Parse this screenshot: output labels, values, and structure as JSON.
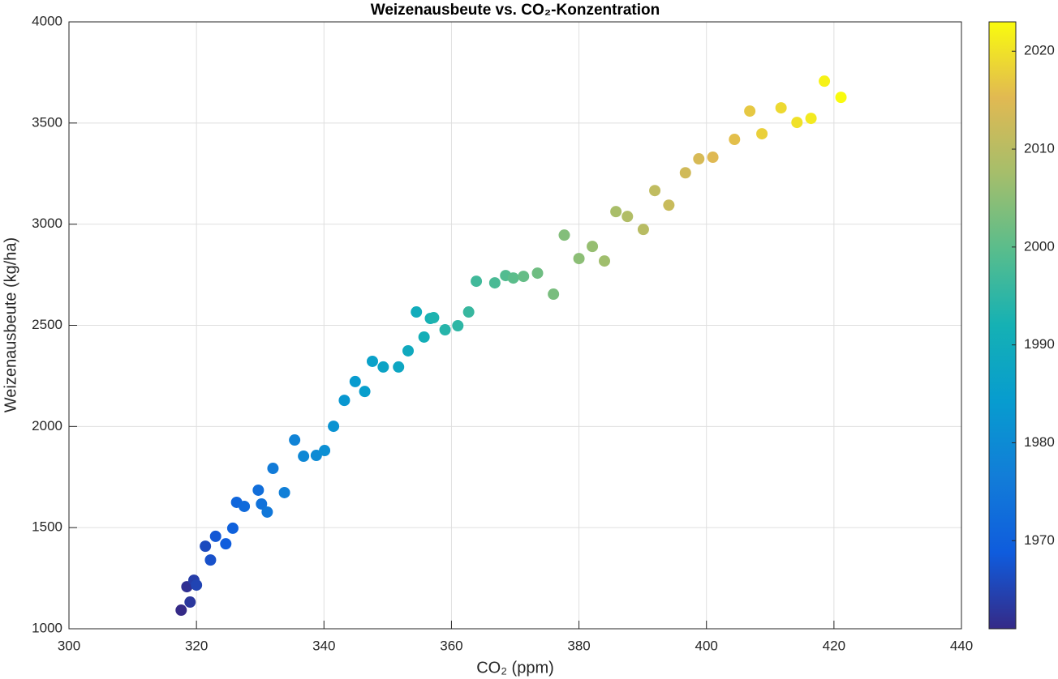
{
  "chart_data": {
    "type": "scatter",
    "title": "Weizenausbeute vs. CO₂-Konzentration",
    "x_label": "CO₂ (ppm)",
    "y_label": "Weizenausbeute (kg/ha)",
    "x": [
      317.6,
      318.5,
      319.0,
      319.6,
      320.0,
      321.4,
      322.2,
      323.0,
      324.6,
      325.7,
      326.3,
      327.5,
      329.7,
      330.2,
      331.1,
      332.0,
      333.8,
      335.4,
      336.8,
      338.8,
      340.1,
      341.5,
      343.2,
      344.9,
      346.4,
      347.6,
      349.3,
      351.7,
      353.2,
      354.5,
      355.7,
      356.7,
      357.2,
      359.0,
      361.0,
      362.7,
      363.9,
      366.8,
      368.5,
      369.7,
      371.3,
      373.5,
      376.0,
      377.7,
      380.0,
      382.1,
      384.0,
      385.8,
      387.6,
      390.1,
      391.9,
      394.1,
      396.7,
      398.8,
      401.0,
      404.4,
      406.8,
      408.7,
      411.7,
      414.2,
      416.4,
      418.5,
      421.1
    ],
    "values": [
      1092,
      1208,
      1132,
      1240,
      1216,
      1408,
      1340,
      1457,
      1420,
      1497,
      1625,
      1605,
      1685,
      1617,
      1577,
      1793,
      1673,
      1933,
      1853,
      1857,
      1881,
      2001,
      2129,
      2222,
      2173,
      2322,
      2294,
      2294,
      2374,
      2566,
      2442,
      2534,
      2538,
      2478,
      2498,
      2566,
      2718,
      2710,
      2746,
      2734,
      2742,
      2758,
      2654,
      2946,
      2830,
      2890,
      2818,
      3062,
      3038,
      2974,
      3166,
      3094,
      3254,
      3323,
      3331,
      3419,
      3559,
      3447,
      3575,
      3503,
      3523,
      3707,
      3627
    ],
    "c": [
      1961,
      1962,
      1963,
      1964,
      1965,
      1966,
      1967,
      1968,
      1969,
      1970,
      1971,
      1972,
      1973,
      1974,
      1975,
      1976,
      1977,
      1978,
      1979,
      1980,
      1981,
      1982,
      1983,
      1984,
      1985,
      1986,
      1987,
      1988,
      1989,
      1990,
      1991,
      1992,
      1993,
      1994,
      1995,
      1996,
      1997,
      1998,
      1999,
      2000,
      2001,
      2002,
      2003,
      2004,
      2005,
      2006,
      2007,
      2008,
      2009,
      2010,
      2011,
      2012,
      2013,
      2014,
      2015,
      2016,
      2017,
      2018,
      2019,
      2020,
      2021,
      2022,
      2023
    ],
    "colormap": "parula",
    "xlim": [
      300,
      440
    ],
    "xticks": [
      300,
      320,
      340,
      360,
      380,
      400,
      420,
      440
    ],
    "ylim": [
      1000,
      4000
    ],
    "yticks": [
      1000,
      1500,
      2000,
      2500,
      3000,
      3500,
      4000
    ],
    "clim": [
      1961,
      2023
    ],
    "cticks": [
      1970,
      1980,
      1990,
      2000,
      2010,
      2020
    ],
    "grid": true
  }
}
